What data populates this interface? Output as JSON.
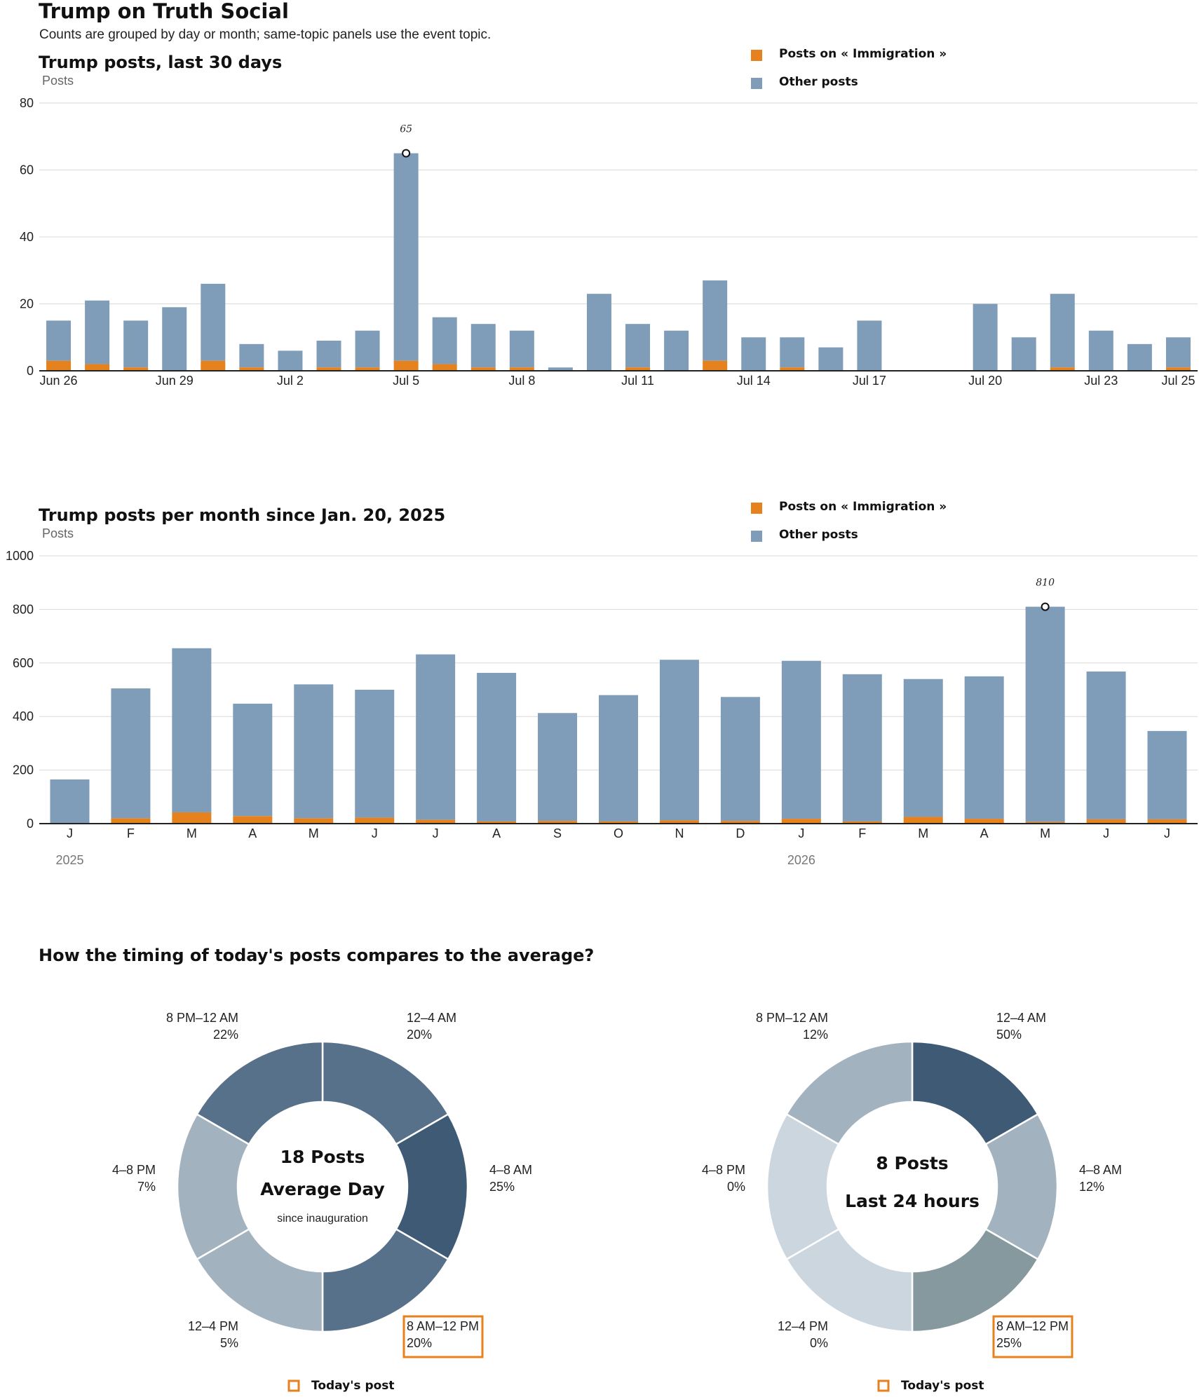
{
  "header": {
    "title": "Trump on Truth Social",
    "subtitle": "Counts are grouped by day or month; same-topic panels use the event topic."
  },
  "colors": {
    "topic": "#e6821e",
    "other": "#7f9db9",
    "highlight": "#e6821e",
    "pie_shades": [
      "#3e5a75",
      "#58718b",
      "#86999f",
      "#a3b2bf",
      "#ccd6df"
    ]
  },
  "chart_data": [
    {
      "type": "bar",
      "stacked": true,
      "title": "Trump posts, last 30 days",
      "ylabel": "Posts",
      "ylim": [
        0,
        80
      ],
      "yticks": [
        0,
        20,
        40,
        60,
        80
      ],
      "grid": true,
      "legend": {
        "position": "top-right",
        "entries": [
          "Posts on « Immigration »",
          "Other posts"
        ]
      },
      "categories": [
        "Jun 26",
        "Jun 27",
        "Jun 28",
        "Jun 29",
        "Jun 30",
        "Jul 1",
        "Jul 2",
        "Jul 3",
        "Jul 4",
        "Jul 5",
        "Jul 6",
        "Jul 7",
        "Jul 8",
        "Jul 9",
        "Jul 10",
        "Jul 11",
        "Jul 12",
        "Jul 13",
        "Jul 14",
        "Jul 15",
        "Jul 16",
        "Jul 17",
        "Jul 18",
        "Jul 19",
        "Jul 20",
        "Jul 21",
        "Jul 22",
        "Jul 23",
        "Jul 24",
        "Jul 25"
      ],
      "tick_labels": [
        "Jun 26",
        "",
        "",
        "Jun 29",
        "",
        "",
        "Jul 2",
        "",
        "",
        "Jul 5",
        "",
        "",
        "Jul 8",
        "",
        "",
        "Jul 11",
        "",
        "",
        "Jul 14",
        "",
        "",
        "Jul 17",
        "",
        "",
        "Jul 20",
        "",
        "",
        "Jul 23",
        "",
        "Jul 25"
      ],
      "series": [
        {
          "name": "Posts on « Immigration »",
          "values": [
            3,
            2,
            1,
            0,
            3,
            1,
            0,
            1,
            1,
            3,
            2,
            1,
            1,
            0,
            0,
            1,
            0,
            3,
            0,
            1,
            0,
            0,
            0,
            0,
            0,
            0,
            1,
            0,
            0,
            1
          ]
        },
        {
          "name": "Other posts",
          "values": [
            12,
            19,
            14,
            19,
            23,
            7,
            6,
            8,
            11,
            62,
            14,
            13,
            11,
            1,
            23,
            13,
            12,
            24,
            10,
            9,
            7,
            15,
            0,
            0,
            20,
            10,
            22,
            12,
            8,
            9
          ]
        }
      ],
      "annotations": [
        {
          "category": "Jul 5",
          "value": 65,
          "label": "65"
        }
      ]
    },
    {
      "type": "bar",
      "stacked": true,
      "title": "Trump posts per month since Jan. 20, 2025",
      "ylabel": "Posts",
      "ylim": [
        0,
        1000
      ],
      "yticks": [
        0,
        200,
        400,
        600,
        800,
        1000
      ],
      "grid": true,
      "legend": {
        "position": "top-right",
        "entries": [
          "Posts on « Immigration »",
          "Other posts"
        ]
      },
      "categories": [
        "J",
        "F",
        "M",
        "A",
        "M",
        "J",
        "J",
        "A",
        "S",
        "O",
        "N",
        "D",
        "J",
        "F",
        "M",
        "A",
        "M",
        "J",
        "J"
      ],
      "year_labels": [
        {
          "at": 0,
          "label": "2025"
        },
        {
          "at": 12,
          "label": "2026"
        }
      ],
      "series": [
        {
          "name": "Posts on « Immigration »",
          "values": [
            2,
            20,
            42,
            28,
            20,
            22,
            14,
            8,
            10,
            8,
            12,
            10,
            18,
            8,
            25,
            18,
            6,
            16,
            16
          ]
        },
        {
          "name": "Other posts",
          "values": [
            163,
            485,
            613,
            420,
            500,
            478,
            618,
            555,
            403,
            472,
            600,
            463,
            590,
            550,
            515,
            532,
            804,
            552,
            330
          ]
        }
      ],
      "annotations": [
        {
          "category_index": 16,
          "value": 810,
          "label": "810"
        }
      ]
    },
    {
      "type": "pie",
      "donut": true,
      "section_title": "How the timing of today's posts compares to the average?",
      "center": [
        "18 Posts",
        "Average Day",
        "since inauguration"
      ],
      "slices": [
        {
          "label": "12–4 AM",
          "pct_label": "20%",
          "value": 20,
          "shade": 1
        },
        {
          "label": "4–8 AM",
          "pct_label": "25%",
          "value": 25,
          "shade": 0
        },
        {
          "label": "8 AM–12 PM",
          "pct_label": "20%",
          "value": 20,
          "shade": 1,
          "highlight": true
        },
        {
          "label": "12–4 PM",
          "pct_label": "5%",
          "value": 5,
          "shade": 3
        },
        {
          "label": "4–8 PM",
          "pct_label": "7%",
          "value": 7,
          "shade": 3
        },
        {
          "label": "8 PM–12 AM",
          "pct_label": "22%",
          "value": 22,
          "shade": 1
        }
      ],
      "legend": "Today's post"
    },
    {
      "type": "pie",
      "donut": true,
      "center": [
        "8 Posts",
        "Last 24 hours"
      ],
      "slices": [
        {
          "label": "12–4 AM",
          "pct_label": "50%",
          "value": 50,
          "shade": 0
        },
        {
          "label": "4–8 AM",
          "pct_label": "12%",
          "value": 12,
          "shade": 3
        },
        {
          "label": "8 AM–12 PM",
          "pct_label": "25%",
          "value": 25,
          "shade": 2,
          "highlight": true
        },
        {
          "label": "12–4 PM",
          "pct_label": "0%",
          "value": 0,
          "shade": 4
        },
        {
          "label": "4–8 PM",
          "pct_label": "0%",
          "value": 0,
          "shade": 4
        },
        {
          "label": "8 PM–12 AM",
          "pct_label": "12%",
          "value": 12,
          "shade": 3
        }
      ],
      "legend": "Today's post"
    }
  ]
}
